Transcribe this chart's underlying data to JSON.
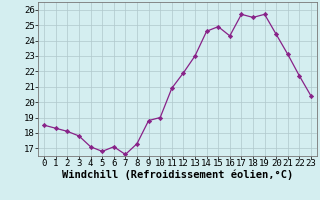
{
  "x": [
    0,
    1,
    2,
    3,
    4,
    5,
    6,
    7,
    8,
    9,
    10,
    11,
    12,
    13,
    14,
    15,
    16,
    17,
    18,
    19,
    20,
    21,
    22,
    23
  ],
  "y": [
    18.5,
    18.3,
    18.1,
    17.8,
    17.1,
    16.8,
    17.1,
    16.6,
    17.3,
    18.8,
    19.0,
    20.9,
    21.9,
    23.0,
    24.6,
    24.9,
    24.3,
    25.7,
    25.5,
    25.7,
    24.4,
    23.1,
    21.7,
    20.4
  ],
  "xlabel": "Windchill (Refroidissement éolien,°C)",
  "xlim": [
    -0.5,
    23.5
  ],
  "ylim": [
    16.5,
    26.5
  ],
  "yticks": [
    17,
    18,
    19,
    20,
    21,
    22,
    23,
    24,
    25,
    26
  ],
  "xticks": [
    0,
    1,
    2,
    3,
    4,
    5,
    6,
    7,
    8,
    9,
    10,
    11,
    12,
    13,
    14,
    15,
    16,
    17,
    18,
    19,
    20,
    21,
    22,
    23
  ],
  "line_color": "#882288",
  "marker_color": "#882288",
  "bg_color": "#d4eef0",
  "grid_color": "#b0c8cc",
  "xlabel_fontsize": 7.5,
  "tick_fontsize": 6.5
}
